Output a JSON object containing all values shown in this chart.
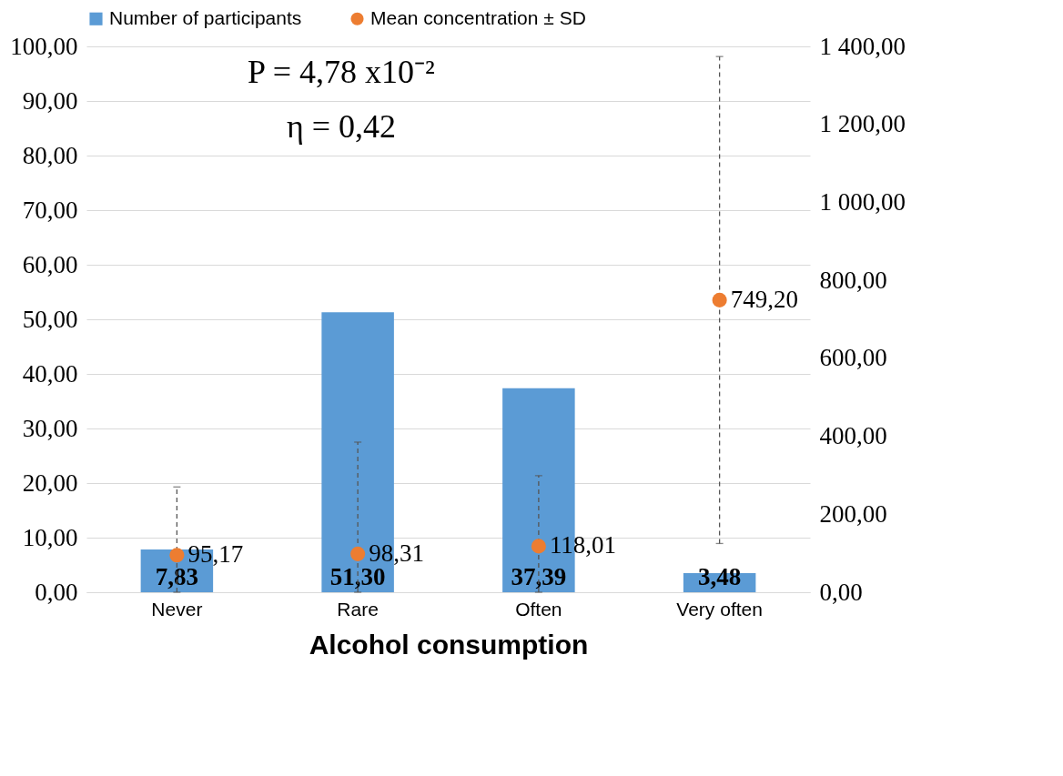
{
  "chart_data": {
    "type": "bar",
    "xlabel": "Alcohol consumption",
    "categories": [
      "Never",
      "Rare",
      "Often",
      "Very often"
    ],
    "series": [
      {
        "name": "Number of participants",
        "type": "bar",
        "color": "#5b9bd5",
        "values": [
          7.83,
          51.3,
          37.39,
          3.48
        ],
        "value_labels": [
          "7,83",
          "51,30",
          "37,39",
          "3,48"
        ]
      },
      {
        "name": "Mean concentration ± SD",
        "type": "scatter",
        "axis": "y2",
        "color": "#ed7d31",
        "values": [
          95.17,
          98.31,
          118.01,
          749.2
        ],
        "value_labels": [
          "95,17",
          "98,31",
          "118,01",
          "749,20"
        ],
        "errors": [
          [
            0,
            270
          ],
          [
            0,
            385
          ],
          [
            0,
            299
          ],
          [
            125,
            1374
          ]
        ]
      }
    ],
    "ylim": [
      0,
      100
    ],
    "yticks": [
      {
        "value": 0,
        "label": "0,00"
      },
      {
        "value": 10,
        "label": "10,00"
      },
      {
        "value": 20,
        "label": "20,00"
      },
      {
        "value": 30,
        "label": "30,00"
      },
      {
        "value": 40,
        "label": "40,00"
      },
      {
        "value": 50,
        "label": "50,00"
      },
      {
        "value": 60,
        "label": "60,00"
      },
      {
        "value": 70,
        "label": "70,00"
      },
      {
        "value": 80,
        "label": "80,00"
      },
      {
        "value": 90,
        "label": "90,00"
      },
      {
        "value": 100,
        "label": "100,00"
      }
    ],
    "y2lim": [
      0,
      1400
    ],
    "y2ticks": [
      {
        "value": 0,
        "label": "0,00"
      },
      {
        "value": 200,
        "label": "200,00"
      },
      {
        "value": 400,
        "label": "400,00"
      },
      {
        "value": 600,
        "label": "600,00"
      },
      {
        "value": 800,
        "label": "800,00"
      },
      {
        "value": 1000,
        "label": "1 000,00"
      },
      {
        "value": 1200,
        "label": "1 200,00"
      },
      {
        "value": 1400,
        "label": "1 400,00"
      }
    ],
    "annotations": [
      "P = 4,78 x10⁻²",
      "η = 0,42"
    ],
    "grid": "y",
    "legend": "top",
    "marker": "circle"
  }
}
